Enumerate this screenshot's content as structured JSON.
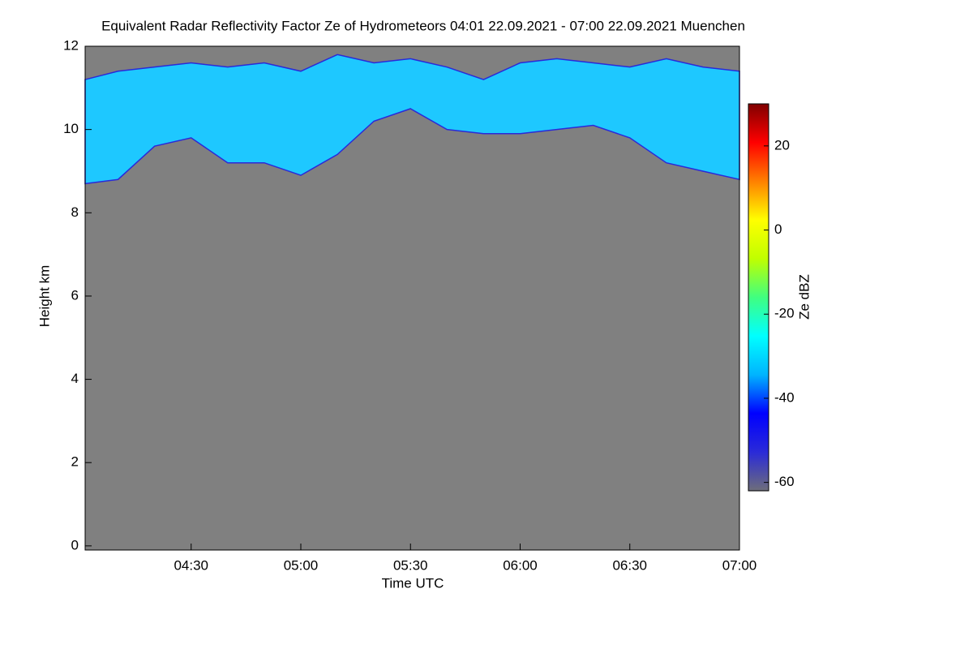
{
  "chart_data": {
    "type": "time-height",
    "title": "Equivalent Radar Reflectivity Factor Ze of Hydrometeors   04:01 22.09.2021 - 07:00 22.09.2021 Muenchen",
    "x_label": "Time UTC",
    "y_label": "Height km",
    "xlim": [
      "04:01",
      "07:00"
    ],
    "xticks": [
      "04:30",
      "05:00",
      "05:30",
      "06:00",
      "06:30",
      "07:00"
    ],
    "ylim": [
      -0.1,
      12
    ],
    "yticks": [
      0,
      2,
      4,
      6,
      8,
      10,
      12
    ],
    "background": "#808080",
    "x": [
      "04:01",
      "04:10",
      "04:20",
      "04:30",
      "04:40",
      "04:50",
      "05:00",
      "05:10",
      "05:20",
      "05:30",
      "05:40",
      "05:50",
      "06:00",
      "06:10",
      "06:20",
      "06:30",
      "06:40",
      "06:50",
      "07:00"
    ],
    "cloud_top": [
      11.2,
      11.4,
      11.5,
      11.6,
      11.5,
      11.6,
      11.4,
      11.8,
      11.6,
      11.7,
      11.5,
      11.2,
      11.6,
      11.7,
      11.6,
      11.5,
      11.7,
      11.5,
      11.4
    ],
    "cloud_base": [
      8.7,
      8.8,
      9.6,
      9.8,
      9.2,
      9.2,
      8.9,
      9.4,
      10.2,
      10.5,
      10.0,
      9.9,
      9.9,
      10.0,
      10.1,
      9.8,
      9.2,
      9.0,
      8.8
    ],
    "cloud_color": "#1ec8ff",
    "colorbar": {
      "label": "Ze dBZ",
      "clim": [
        -62,
        30
      ],
      "ticks": [
        -60,
        -40,
        -20,
        0,
        20
      ],
      "colormap": [
        "#6e6e7a",
        "#2a2ad8",
        "#0000ff",
        "#00b4ff",
        "#00ffff",
        "#40ff80",
        "#c0ff00",
        "#ffff00",
        "#ff8000",
        "#ff0000",
        "#800000"
      ]
    }
  }
}
